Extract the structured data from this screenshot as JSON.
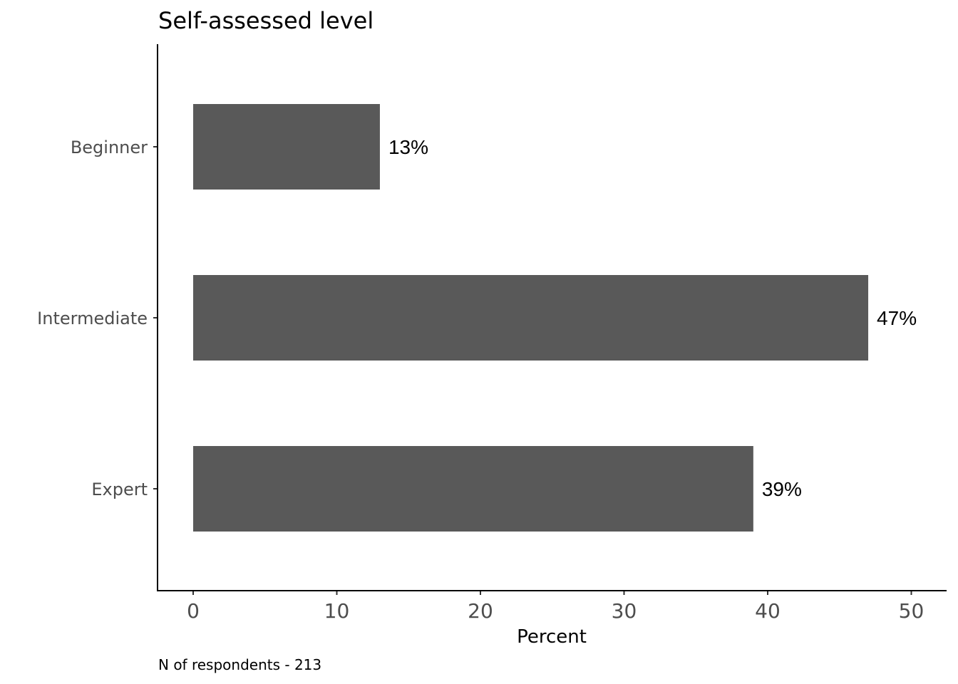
{
  "chart_data": {
    "type": "bar",
    "orientation": "horizontal",
    "title": "Self-assessed level",
    "xlabel": "Percent",
    "ylabel": "",
    "caption": "N of respondents - 213",
    "categories": [
      "Beginner",
      "Intermediate",
      "Expert"
    ],
    "values": [
      13,
      47,
      39
    ],
    "data_labels": [
      "13%",
      "47%",
      "39%"
    ],
    "x_ticks": [
      0,
      10,
      20,
      30,
      40,
      50
    ],
    "xlim": [
      -2.5,
      52.5
    ],
    "grid": false,
    "bar_color": "#595959"
  }
}
